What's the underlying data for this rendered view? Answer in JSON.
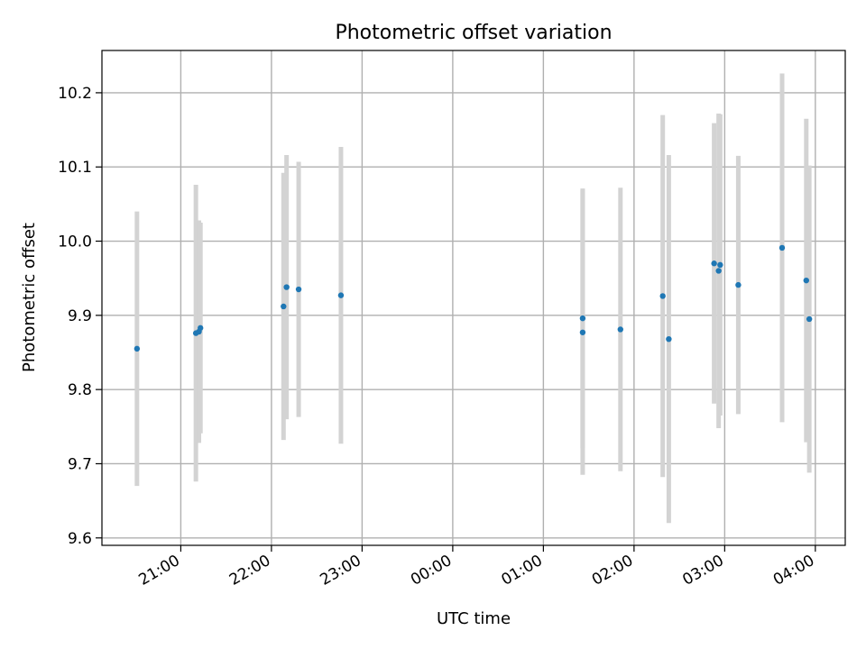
{
  "chart_data": {
    "type": "scatter",
    "title": "Photometric offset variation",
    "xlabel": "UTC time",
    "ylabel": "Photometric offset",
    "x_ticks": [
      "21:00",
      "22:00",
      "23:00",
      "00:00",
      "01:00",
      "02:00",
      "03:00",
      "04:00"
    ],
    "y_ticks": [
      "9.6",
      "9.7",
      "9.8",
      "9.9",
      "10.0",
      "10.1",
      "10.2"
    ],
    "xlim_hours": [
      20.13,
      28.33
    ],
    "ylim": [
      9.59,
      10.257
    ],
    "grid": true,
    "colors": {
      "point": "#1f77b4",
      "errorbar": "#d3d3d3",
      "grid": "#b0b0b0"
    },
    "points": [
      {
        "time": "20:31",
        "offset": 9.855,
        "err": 0.185
      },
      {
        "time": "21:10",
        "offset": 9.876,
        "err": 0.2
      },
      {
        "time": "21:12",
        "offset": 9.878,
        "err": 0.15
      },
      {
        "time": "21:13",
        "offset": 9.883,
        "err": 0.142
      },
      {
        "time": "22:08",
        "offset": 9.912,
        "err": 0.18
      },
      {
        "time": "22:10",
        "offset": 9.938,
        "err": 0.178
      },
      {
        "time": "22:18",
        "offset": 9.935,
        "err": 0.172
      },
      {
        "time": "22:46",
        "offset": 9.927,
        "err": 0.2
      },
      {
        "time": "01:26",
        "offset": 9.896,
        "err": 0.175
      },
      {
        "time": "01:26",
        "offset": 9.877,
        "err": 0.192
      },
      {
        "time": "01:51",
        "offset": 9.881,
        "err": 0.191
      },
      {
        "time": "02:19",
        "offset": 9.926,
        "err": 0.244
      },
      {
        "time": "02:23",
        "offset": 9.868,
        "err": 0.248
      },
      {
        "time": "02:53",
        "offset": 9.97,
        "err": 0.189
      },
      {
        "time": "02:56",
        "offset": 9.96,
        "err": 0.212
      },
      {
        "time": "02:57",
        "offset": 9.968,
        "err": 0.203
      },
      {
        "time": "03:09",
        "offset": 9.941,
        "err": 0.174
      },
      {
        "time": "03:38",
        "offset": 9.991,
        "err": 0.235
      },
      {
        "time": "03:54",
        "offset": 9.947,
        "err": 0.218
      },
      {
        "time": "03:56",
        "offset": 9.895,
        "err": 0.207
      }
    ]
  }
}
